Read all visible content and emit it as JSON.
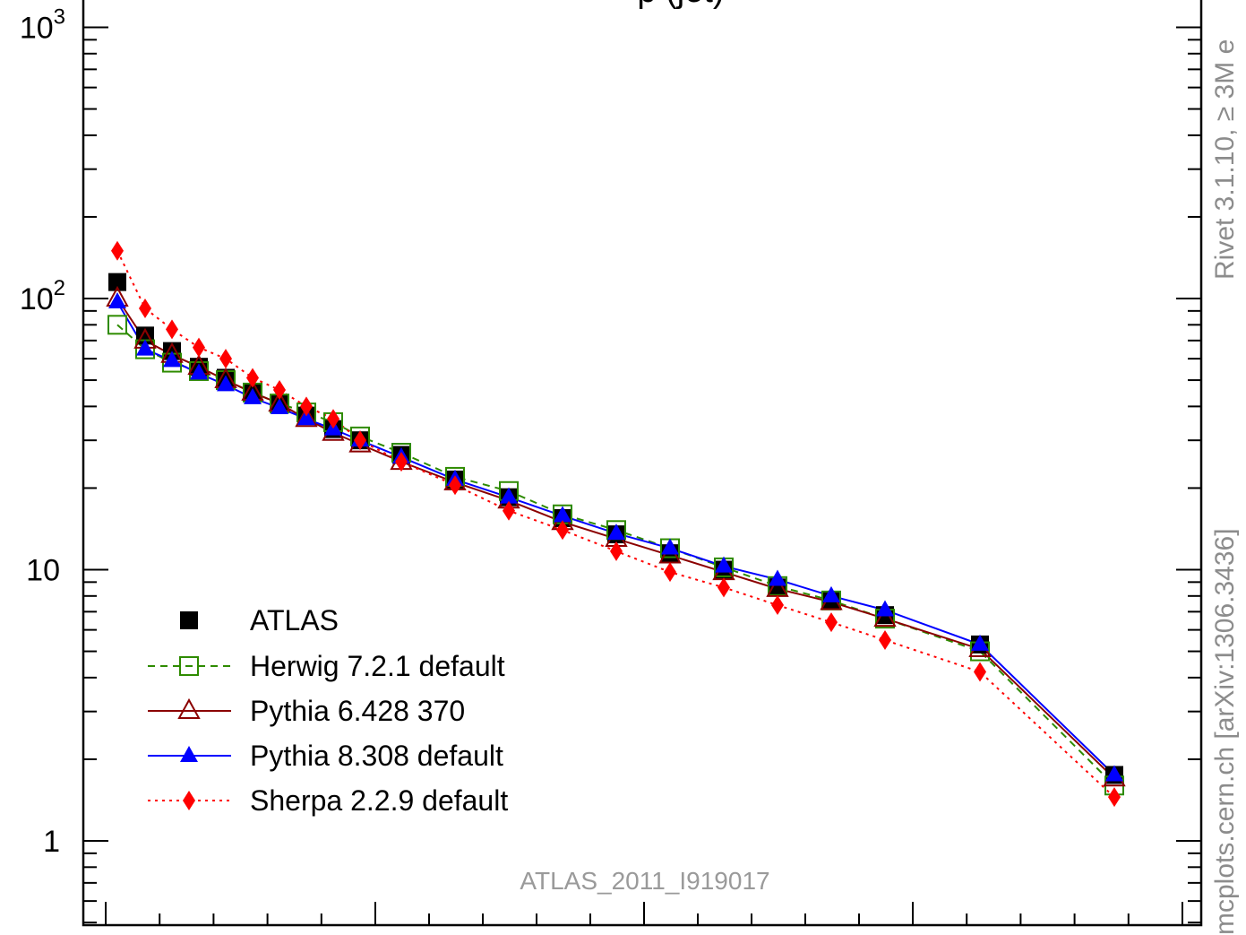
{
  "chart_data": {
    "type": "scatter",
    "title": "p (jet)",
    "y_scale": "log",
    "ylim": [
      0.5,
      1100
    ],
    "y_ticks": [
      {
        "value": 1,
        "label": "1"
      },
      {
        "value": 10,
        "label": "10"
      },
      {
        "value": 100,
        "base": "10",
        "exp": "2"
      },
      {
        "value": 1000,
        "base": "10",
        "exp": "3"
      }
    ],
    "x_index_range": [
      0,
      37.8
    ],
    "x_index_labeled": [],
    "watermark": "ATLAS_2011_I919017",
    "side_labels": {
      "rivet": "Rivet 3.1.10, ≥ 3M e",
      "mcplots": "mcplots.cern.ch [arXiv:1306.3436]"
    },
    "x": [
      1,
      2,
      3,
      4,
      5,
      6,
      7,
      8,
      9,
      10,
      11.5,
      13.5,
      15.5,
      17.5,
      19.5,
      21.5,
      23.5,
      25.5,
      27.5,
      29.5,
      31.5,
      35,
      40
    ],
    "series": [
      {
        "name": "ATLAS",
        "color": "#000000",
        "marker": "square-filled",
        "line": "none",
        "values": [
          115,
          73,
          64,
          56,
          51,
          45,
          41,
          37,
          33,
          30,
          26.5,
          21.5,
          18.5,
          15.5,
          13.5,
          11.5,
          10,
          8.6,
          7.7,
          6.8,
          5.3,
          1.75,
          1.75
        ]
      },
      {
        "name": "Herwig 7.2.1 default",
        "color": "#2e8b00",
        "marker": "square-open",
        "line": "dashed",
        "values": [
          80,
          65,
          58,
          54,
          50,
          45,
          41,
          38,
          35,
          31,
          27,
          22,
          19.5,
          16,
          14,
          12,
          10.2,
          8.7,
          7.7,
          6.6,
          5.0,
          1.6,
          1.6
        ]
      },
      {
        "name": "Pythia 6.428 370",
        "color": "#8b0000",
        "marker": "triangle-open",
        "line": "solid",
        "values": [
          100,
          70,
          62,
          56,
          50,
          45,
          41,
          36,
          32,
          29,
          25,
          21,
          18,
          15,
          13,
          11.3,
          9.8,
          8.5,
          7.6,
          6.6,
          5.1,
          1.7,
          1.7
        ]
      },
      {
        "name": "Pythia 8.308 default",
        "color": "#0000ff",
        "marker": "triangle-filled",
        "line": "solid",
        "values": [
          97,
          65,
          59,
          53,
          48,
          43,
          39.5,
          36,
          33,
          30,
          26,
          21.5,
          18.5,
          15.8,
          13.6,
          12,
          10.3,
          9.2,
          8,
          7.1,
          5.3,
          1.75,
          1.75
        ]
      },
      {
        "name": "Sherpa 2.2.9 default",
        "color": "#ff0000",
        "marker": "diamond-filled",
        "line": "dotted",
        "values": [
          150,
          92,
          77,
          66,
          60,
          51,
          46,
          40,
          36,
          30,
          25,
          20.5,
          16.5,
          14,
          11.7,
          9.8,
          8.6,
          7.4,
          6.4,
          5.5,
          4.2,
          1.45,
          1.45
        ]
      }
    ]
  }
}
